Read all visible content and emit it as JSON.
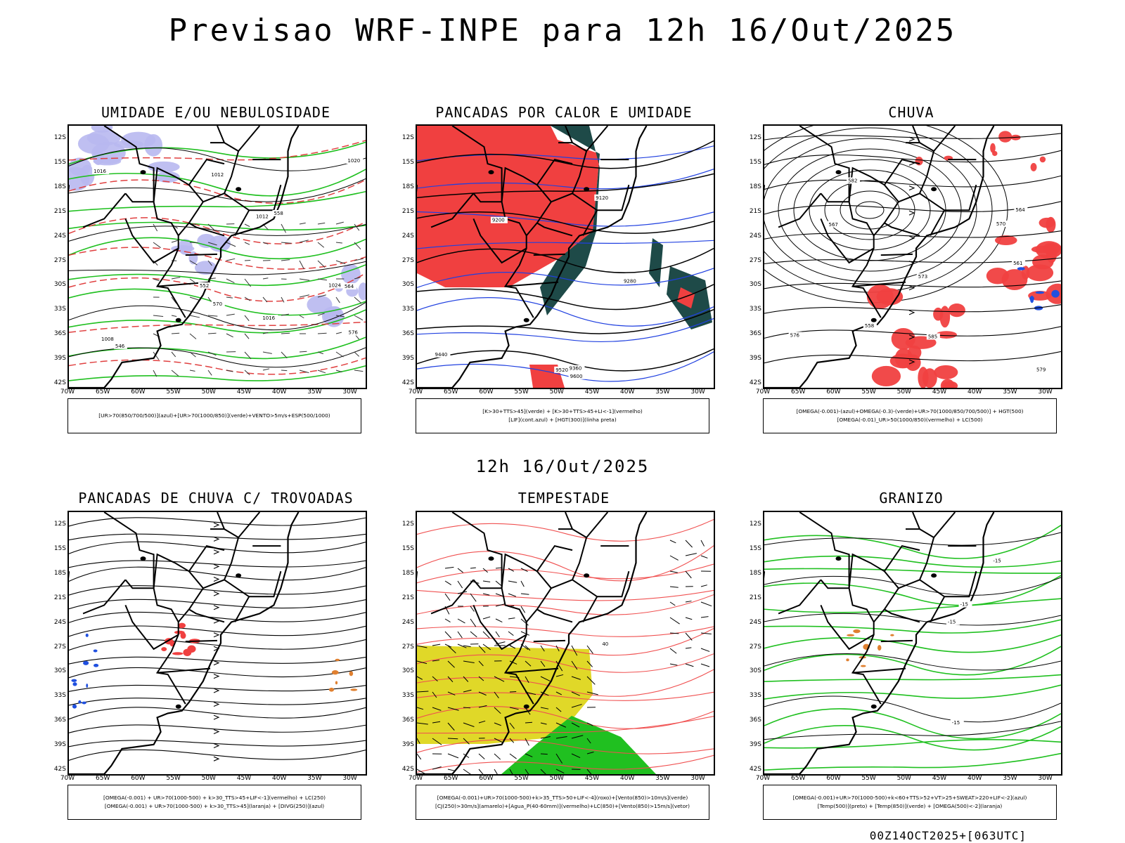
{
  "header": {
    "title": "Previsao WRF-INPE  para 12h 16/Out/2025",
    "mid_title": "12h 16/Out/2025",
    "footer": "00Z14OCT2025+[063UTC]"
  },
  "axes": {
    "lat_labels": [
      "12S",
      "15S",
      "18S",
      "21S",
      "24S",
      "27S",
      "30S",
      "33S",
      "36S",
      "39S",
      "42S"
    ],
    "lon_labels": [
      "70W",
      "65W",
      "60W",
      "55W",
      "50W",
      "45W",
      "40W",
      "35W",
      "30W"
    ]
  },
  "colors": {
    "humidity_blue": "#b8b8f0",
    "convection_red": "#f04040",
    "dark_teal": "#1e4a48",
    "moisture_green": "#20c020",
    "jet_yellow": "#e0d828",
    "hail_orange": "#e08030"
  },
  "panels": [
    {
      "id": "umidade",
      "title": "UMIDADE E/OU NEBULOSIDADE",
      "legend": [
        "[UR>70(850/700/500)](azul)+[UR>70(1000/850)](verde)+VENTO>5m/s+ESP(500/1000)"
      ],
      "contour_labels": [
        "1012",
        "1016",
        "1008",
        "1020",
        "1024",
        "1012",
        "1016",
        "570",
        "576",
        "564",
        "558",
        "552",
        "546"
      ]
    },
    {
      "id": "pancadas-calor",
      "title": "PANCADAS POR CALOR E UMIDADE",
      "legend": [
        "[K>30+TTS>45](verde) + [K>30+TTS>45+LI<-1](vermelho)",
        "[LIF](cont.azul) + [HGT(300)](linha preta)"
      ],
      "contour_labels": [
        "9600",
        "9520",
        "9440",
        "9360",
        "9280",
        "9200",
        "9120"
      ]
    },
    {
      "id": "chuva",
      "title": "CHUVA",
      "legend": [
        "[OMEGA(-0.001)-(azul)+OMEGA(-0.3)-(verde)+UR>70(1000/850/700/500)] + HGT(500)",
        "[OMEGA(-0.01)_UR>50(1000/850)(vermelho) + LC(500)"
      ],
      "contour_labels": [
        "585",
        "582",
        "579",
        "576",
        "573",
        "570",
        "567",
        "564",
        "561",
        "558"
      ]
    },
    {
      "id": "trovoadas",
      "title": "PANCADAS DE CHUVA C/ TROVOADAS",
      "legend": [
        "[OMEGA(-0.001) + UR>70(1000-500) + k>30_TTS>45+LIF<-1](vermelho) + LC(250)",
        "[OMEGA(-0.001) + UR>70(1000-500) + k>30_TTS>45](laranja) + [DIVG(250)](azul)"
      ],
      "contour_labels": []
    },
    {
      "id": "tempestade",
      "title": "TEMPESTADE",
      "legend": [
        "[OMEGA(-0.001)+UR>70(1000-500)+k>35_TTS>50+LIF<-4](roxo)+[Vento(850)>10m/s](verde)",
        "[CJ(250)>30m/s](amarelo)+[Agua_P(40-60mm)](vermelho)+LC(850)+[Vento(850)>15m/s](vetor)"
      ],
      "contour_labels": [
        "40"
      ]
    },
    {
      "id": "granizo",
      "title": "GRANIZO",
      "legend": [
        "[OMEGA(-0.001)+UR>70(1000-500)+k<60+TTS>52+VT>25+SWEAT>220+LIF<-2](azul)",
        "[Temp(500)](preto) + [Temp(850)](verde) + [OMEGA(500)<-2](laranja)"
      ],
      "contour_labels": [
        "-15",
        "-15",
        "-15",
        "-15"
      ]
    }
  ]
}
